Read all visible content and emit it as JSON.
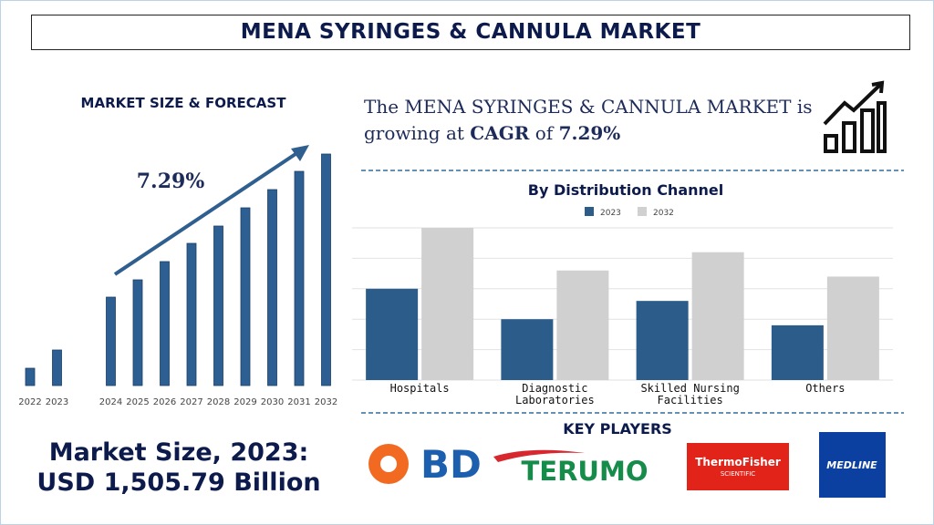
{
  "header": {
    "title": "MENA SYRINGES & CANNULA MARKET"
  },
  "forecast": {
    "heading": "MARKET SIZE & FORECAST"
  },
  "headline": {
    "parts": [
      "The MENA SYRINGES & CANNULA MARKET",
      "is growing at",
      "CAGR",
      "of",
      "7.29%"
    ]
  },
  "market_size": {
    "label": "Market Size, 2023:",
    "value": "USD 1,505.79 Billion"
  },
  "chart_data": [
    {
      "type": "bar",
      "annotation": "7.29%",
      "categories": [
        "2022",
        "2023",
        null,
        "2024",
        "2025",
        "2026",
        "2027",
        "2028",
        "2029",
        "2030",
        "2031",
        "2032"
      ],
      "values": [
        19,
        39,
        null,
        97,
        116,
        136,
        156,
        175,
        195,
        215,
        235,
        254
      ],
      "color": "#2d5f93",
      "ylim": [
        0,
        260
      ]
    },
    {
      "type": "grouped-bar",
      "title": "By Distribution Channel",
      "categories": [
        "Hospitals",
        "Diagnostic Laboratories",
        "Skilled Nursing Facilities",
        "Others"
      ],
      "series": [
        {
          "name": "2023",
          "color": "#2b5c8a",
          "values": [
            3,
            2,
            2.6,
            1.8
          ]
        },
        {
          "name": "2032",
          "color": "#d0d0d0",
          "values": [
            5,
            3.6,
            4.2,
            3.4
          ]
        }
      ],
      "ylim": [
        0,
        5
      ],
      "yticks": [
        0,
        1,
        2,
        3,
        4,
        5
      ],
      "grid": true
    }
  ],
  "key_players": {
    "title": "KEY PLAYERS",
    "logos": [
      "BD",
      "TERUMO",
      "ThermoFisher",
      "SCIENTIFIC",
      "MEDLINE"
    ]
  }
}
